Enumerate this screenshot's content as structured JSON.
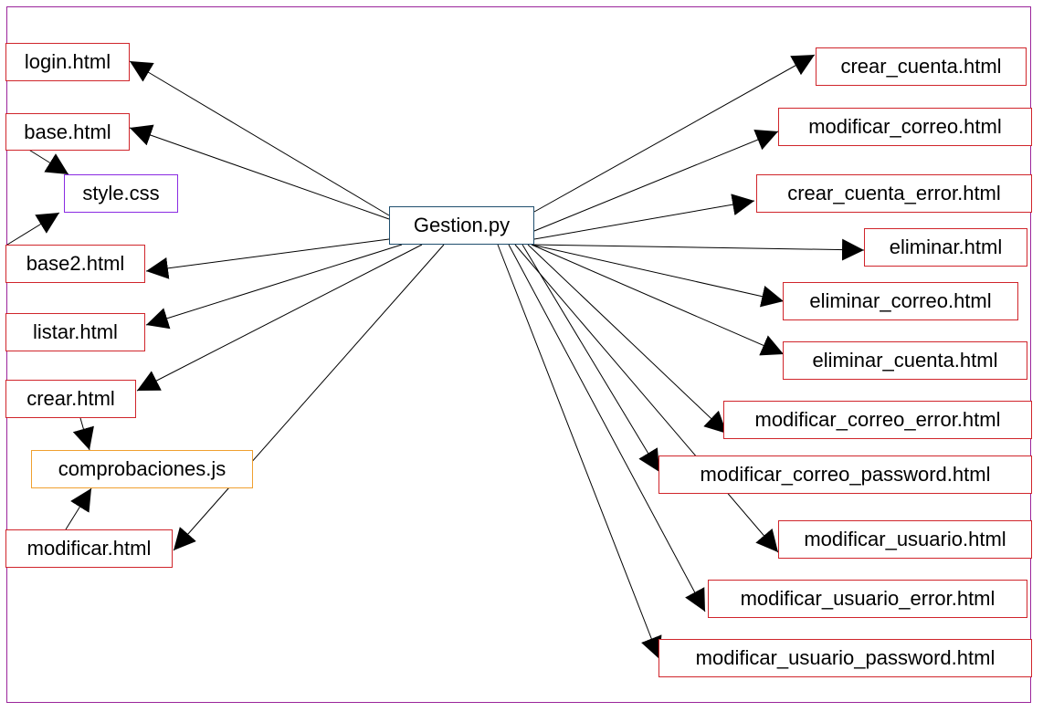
{
  "diagram": {
    "center": "Gestion.py",
    "left_nodes": {
      "login": "login.html",
      "base": "base.html",
      "style": "style.css",
      "base2": "base2.html",
      "listar": "listar.html",
      "crear": "crear.html",
      "comprobaciones": "comprobaciones.js",
      "modificar": "modificar.html"
    },
    "right_nodes": {
      "crear_cuenta": "crear_cuenta.html",
      "modificar_correo": "modificar_correo.html",
      "crear_cuenta_error": "crear_cuenta_error.html",
      "eliminar": "eliminar.html",
      "eliminar_correo": "eliminar_correo.html",
      "eliminar_cuenta": "eliminar_cuenta.html",
      "modificar_correo_error": "modificar_correo_error.html",
      "modificar_correo_password": "modificar_correo_password.html",
      "modificar_usuario": "modificar_usuario.html",
      "modificar_usuario_error": "modificar_usuario_error.html",
      "modificar_usuario_password": "modificar_usuario_password.html"
    }
  }
}
